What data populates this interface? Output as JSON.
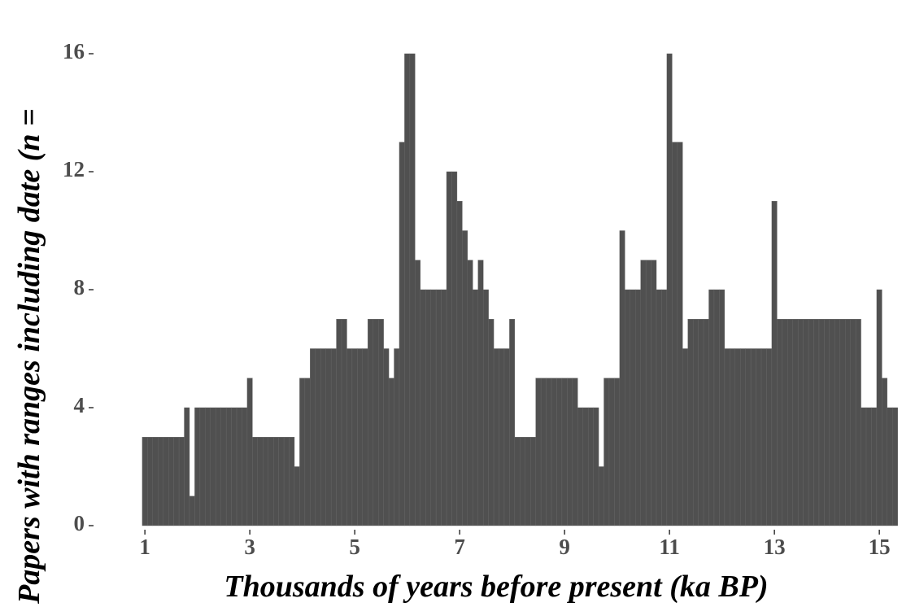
{
  "chart_data": {
    "type": "histogram",
    "x_label": "Thousands of years before present (ka BP)",
    "y_label": "Papers with ranges including date (n =",
    "bins": [
      0.95,
      1.05,
      1.15,
      1.25,
      1.35,
      1.45,
      1.55,
      1.65,
      1.75,
      1.85,
      1.95,
      2.05,
      2.15,
      2.25,
      2.35,
      2.45,
      2.55,
      2.65,
      2.75,
      2.85,
      2.95,
      3.05,
      3.15,
      3.25,
      3.35,
      3.45,
      3.55,
      3.65,
      3.75,
      3.85,
      3.95,
      4.05,
      4.15,
      4.25,
      4.35,
      4.45,
      4.55,
      4.65,
      4.75,
      4.85,
      4.95,
      5.05,
      5.15,
      5.25,
      5.35,
      5.45,
      5.55,
      5.65,
      5.75,
      5.85,
      5.95,
      6.05,
      6.15,
      6.25,
      6.35,
      6.45,
      6.55,
      6.65,
      6.75,
      6.85,
      6.95,
      7.05,
      7.15,
      7.25,
      7.35,
      7.45,
      7.55,
      7.65,
      7.75,
      7.85,
      7.95,
      8.05,
      8.15,
      8.25,
      8.35,
      8.45,
      8.55,
      8.65,
      8.75,
      8.85,
      8.95,
      9.05,
      9.15,
      9.25,
      9.35,
      9.45,
      9.55,
      9.65,
      9.75,
      9.85,
      9.95,
      10.05,
      10.15,
      10.25,
      10.35,
      10.45,
      10.55,
      10.65,
      10.75,
      10.85,
      10.95,
      11.05,
      11.15,
      11.25,
      11.35,
      11.45,
      11.55,
      11.65,
      11.75,
      11.85,
      11.95,
      12.05,
      12.15,
      12.25,
      12.35,
      12.45,
      12.55,
      12.65,
      12.75,
      12.85,
      12.95,
      13.05,
      13.15,
      13.25,
      13.35,
      13.45,
      13.55,
      13.65,
      13.75,
      13.85,
      13.95,
      14.05,
      14.15,
      14.25,
      14.35,
      14.45,
      14.55,
      14.65,
      14.75,
      14.85,
      14.95,
      15.05,
      15.15,
      15.25,
      15.35
    ],
    "values": [
      3,
      3,
      3,
      3,
      3,
      3,
      3,
      3,
      4,
      1,
      4,
      4,
      4,
      4,
      4,
      4,
      4,
      4,
      4,
      4,
      5,
      3,
      3,
      3,
      3,
      3,
      3,
      3,
      3,
      2,
      5,
      5,
      6,
      6,
      6,
      6,
      6,
      7,
      7,
      6,
      6,
      6,
      6,
      7,
      7,
      7,
      6,
      5,
      6,
      13,
      16,
      16,
      9,
      8,
      8,
      8,
      8,
      8,
      12,
      12,
      11,
      10,
      9,
      8,
      9,
      8,
      7,
      6,
      6,
      6,
      7,
      3,
      3,
      3,
      3,
      5,
      5,
      5,
      5,
      5,
      5,
      5,
      5,
      4,
      4,
      4,
      4,
      2,
      5,
      5,
      5,
      10,
      8,
      8,
      8,
      9,
      9,
      9,
      8,
      8,
      16,
      13,
      13,
      6,
      7,
      7,
      7,
      7,
      8,
      8,
      8,
      6,
      6,
      6,
      6,
      6,
      6,
      6,
      6,
      6,
      11,
      7,
      7,
      7,
      7,
      7,
      7,
      7,
      7,
      7,
      7,
      7,
      7,
      7,
      7,
      7,
      7,
      4,
      4,
      4,
      8,
      5,
      4,
      4
    ],
    "color": "#505050",
    "xlim": [
      0.3,
      15.37
    ],
    "xticks": [
      1,
      3,
      5,
      7,
      9,
      11,
      13,
      15
    ],
    "ylim": [
      0,
      16
    ],
    "yticks": [
      0,
      4,
      8,
      12,
      16
    ]
  }
}
